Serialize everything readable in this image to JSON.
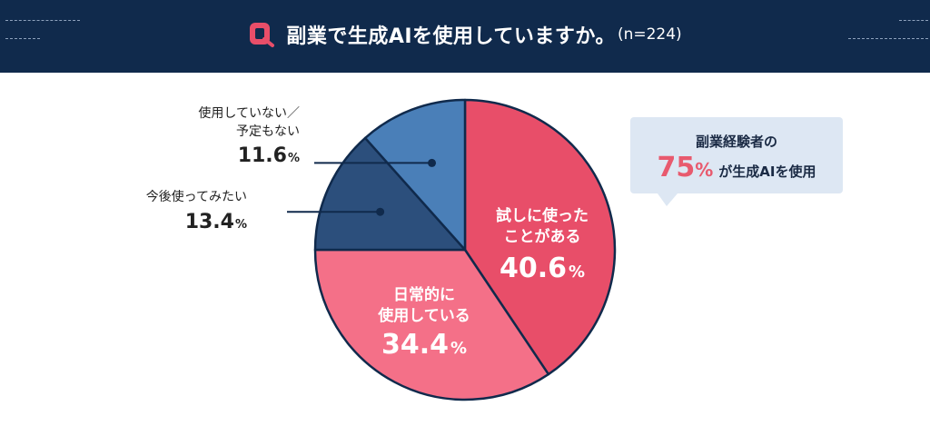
{
  "header": {
    "title": "副業で生成AIを使用していますか。",
    "sample": "(n=224)"
  },
  "callout": {
    "line1": "副業経験者の",
    "big": "75",
    "pct": "%",
    "rest": "が生成AIを使用"
  },
  "colors": {
    "header_bg": "#102a4c",
    "slice_red": "#e84e69",
    "slice_pink": "#f47088",
    "slice_navy": "#2c4f7c",
    "slice_blue": "#4a7fb8",
    "accent": "#e85a6e"
  },
  "chart_data": {
    "type": "pie",
    "title": "副業で生成AIを使用していますか。(n=224)",
    "slices": [
      {
        "name": [
          "試しに使った",
          "ことがある"
        ],
        "value": 40.6,
        "label": "40.6",
        "unit": "%",
        "color": "#e84e69",
        "label_inside": true
      },
      {
        "name": [
          "日常的に",
          "使用している"
        ],
        "value": 34.4,
        "label": "34.4",
        "unit": "%",
        "color": "#f47088",
        "label_inside": true
      },
      {
        "name": [
          "今後使ってみたい"
        ],
        "value": 13.4,
        "label": "13.4",
        "unit": "%",
        "color": "#2c4f7c",
        "label_inside": false
      },
      {
        "name": [
          "使用していない／",
          "予定もない"
        ],
        "value": 11.6,
        "label": "11.6",
        "unit": "%",
        "color": "#4a7fb8",
        "label_inside": false
      }
    ]
  }
}
